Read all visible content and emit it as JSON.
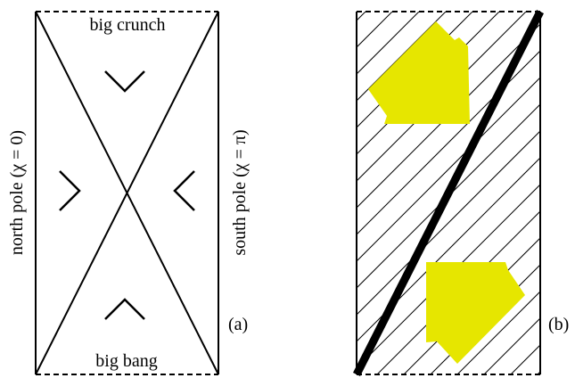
{
  "panel_a": {
    "top_label": "big crunch",
    "bottom_label": "big bang",
    "left_label": "north pole   (χ = 0)",
    "right_label": "south pole   (χ = π)",
    "tag": "(a)"
  },
  "panel_b": {
    "tag": "(b)"
  },
  "colors": {
    "line": "#000000",
    "arrow_fill": "#e6e600",
    "background": "#ffffff"
  }
}
